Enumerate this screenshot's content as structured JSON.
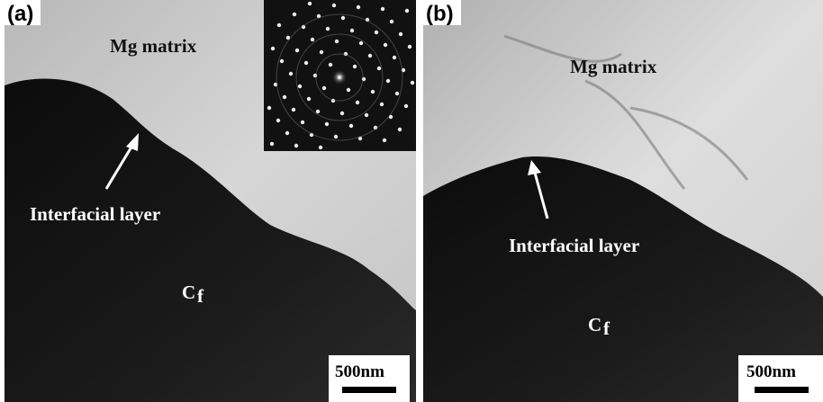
{
  "panels": [
    {
      "label": "(a)",
      "matrix_label": "Mg matrix",
      "layer_label": "Interfacial layer",
      "fiber_label": "C",
      "fiber_subscript": "f",
      "scale_bar": "500nm"
    },
    {
      "label": "(b)",
      "matrix_label": "Mg matrix",
      "layer_label": "Interfacial layer",
      "fiber_label": "C",
      "fiber_subscript": "f",
      "scale_bar": "500nm"
    }
  ]
}
